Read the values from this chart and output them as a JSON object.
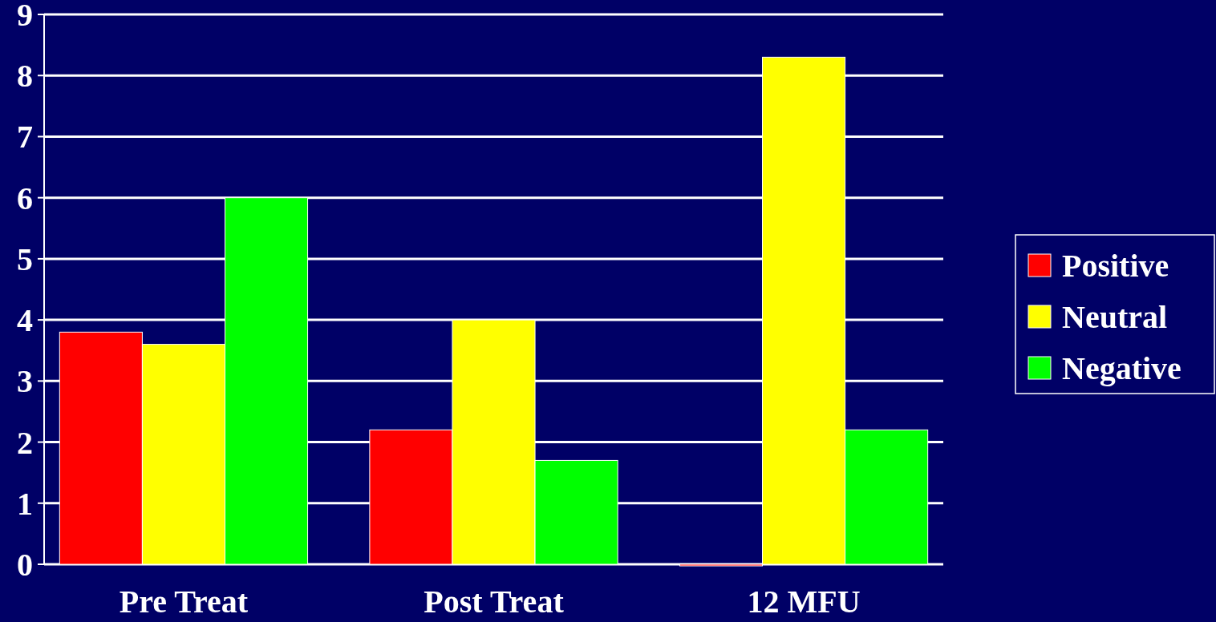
{
  "chart_data": {
    "type": "bar",
    "categories": [
      "Pre Treat",
      "Post Treat",
      "12 MFU"
    ],
    "series": [
      {
        "name": "Positive",
        "color": "#ff0000",
        "values": [
          3.8,
          2.2,
          0
        ]
      },
      {
        "name": "Neutral",
        "color": "#ffff00",
        "values": [
          3.6,
          4.0,
          8.3
        ]
      },
      {
        "name": "Negative",
        "color": "#00ff00",
        "values": [
          6.0,
          1.7,
          2.2
        ]
      }
    ],
    "ylim": [
      0,
      9
    ],
    "yticks": [
      0,
      1,
      2,
      3,
      4,
      5,
      6,
      7,
      8,
      9
    ],
    "grid": "y",
    "legend": "right"
  }
}
